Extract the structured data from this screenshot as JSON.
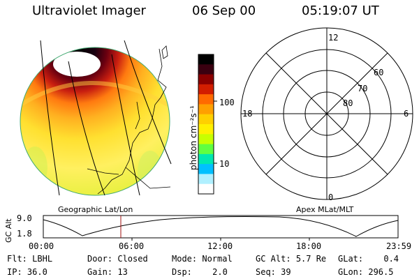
{
  "header": {
    "title": "Ultraviolet Imager",
    "date": "06 Sep 00",
    "time": "05:19:07 UT"
  },
  "map_panel": {
    "label": "Geographic Lat/Lon"
  },
  "colorbar": {
    "unit_label": "photon cm⁻²s⁻¹",
    "ticks": [
      "100",
      "10"
    ],
    "colors": [
      "#000000",
      "#3a0010",
      "#8b0000",
      "#d21e00",
      "#ff6a00",
      "#ffa000",
      "#ffd000",
      "#fff000",
      "#c8ff00",
      "#60ff40",
      "#00e8b0",
      "#00c0ff",
      "#b0f0ff",
      "#ffffff"
    ]
  },
  "polar_panel": {
    "label": "Apex MLat/MLT",
    "mlt_labels": [
      "12",
      "18",
      "6",
      "0"
    ],
    "lat_labels": [
      "60",
      "70",
      "80"
    ]
  },
  "altitude_strip": {
    "axis_label": "GC Alt",
    "y_ticks": [
      "9.0",
      "1.8"
    ],
    "x_ticks": [
      "00:00",
      "06:00",
      "12:00",
      "18:00",
      "23:59"
    ]
  },
  "info": {
    "row1": [
      {
        "key": "Flt:",
        "value": "LBHL"
      },
      {
        "key": "Door:",
        "value": "Closed"
      },
      {
        "key": "Mode:",
        "value": "Normal"
      },
      {
        "key": "GC Alt:",
        "value": "5.7 Re"
      },
      {
        "key": "GLat:",
        "value": "0.4"
      }
    ],
    "row2": [
      {
        "key": "IP:",
        "value": "36.0"
      },
      {
        "key": "Gain:",
        "value": "13"
      },
      {
        "key": "Dsp:",
        "value": "2.0"
      },
      {
        "key": "Seq:",
        "value": "39"
      },
      {
        "key": "GLon:",
        "value": "296.5"
      }
    ]
  }
}
